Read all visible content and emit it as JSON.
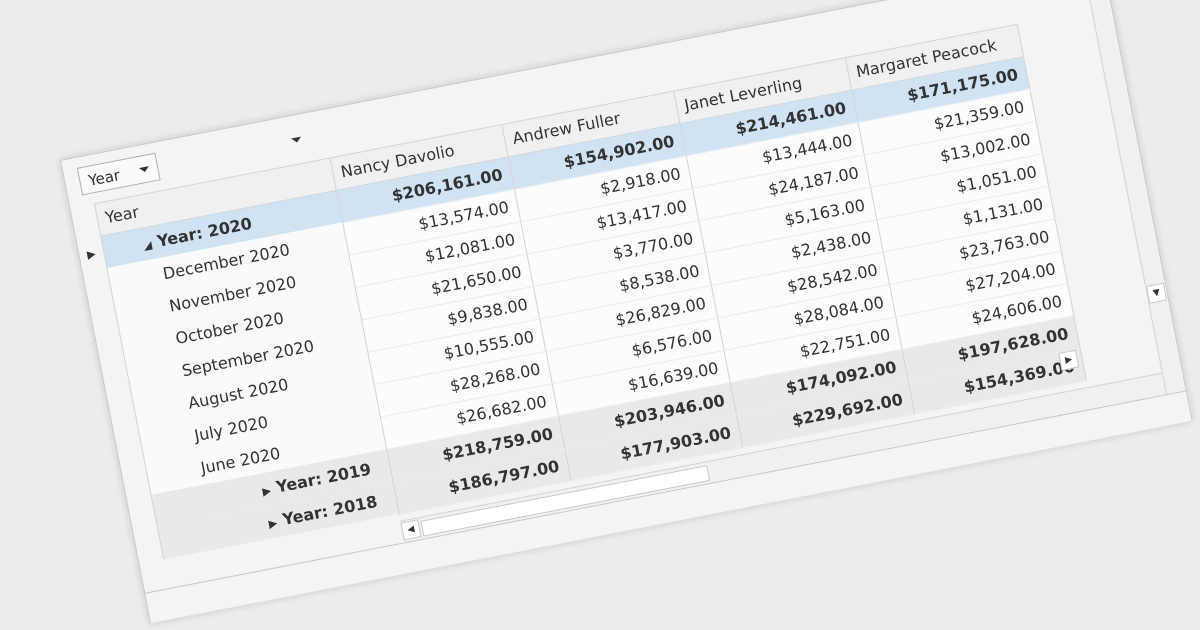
{
  "filter": {
    "label": "Year"
  },
  "grid": {
    "row_header": "Year",
    "columns": [
      "Nancy Davolio",
      "Andrew Fuller",
      "Janet Leverling",
      "Margaret Peacock"
    ],
    "groups": [
      {
        "label": "Year: 2020",
        "total": [
          "$206,161.00",
          "$154,902.00",
          "$214,461.00",
          "$171,175.00"
        ],
        "children": [
          {
            "label": "December 2020",
            "cells": [
              "$13,574.00",
              "$2,918.00",
              "$13,444.00",
              "$21,359.00"
            ]
          },
          {
            "label": "November 2020",
            "cells": [
              "$12,081.00",
              "$13,417.00",
              "$24,187.00",
              "$13,002.00"
            ]
          },
          {
            "label": "October 2020",
            "cells": [
              "$21,650.00",
              "$3,770.00",
              "$5,163.00",
              "$1,051.00"
            ]
          },
          {
            "label": "September 2020",
            "cells": [
              "$9,838.00",
              "$8,538.00",
              "$2,438.00",
              "$1,131.00"
            ]
          },
          {
            "label": "August 2020",
            "cells": [
              "$10,555.00",
              "$26,829.00",
              "$28,542.00",
              "$23,763.00"
            ]
          },
          {
            "label": "July 2020",
            "cells": [
              "$28,268.00",
              "$6,576.00",
              "$28,084.00",
              "$27,204.00"
            ]
          },
          {
            "label": "June 2020",
            "cells": [
              "$26,682.00",
              "$16,639.00",
              "$22,751.00",
              "$24,606.00"
            ]
          }
        ]
      },
      {
        "label": "Year: 2019",
        "total": [
          "$218,759.00",
          "$203,946.00",
          "$174,092.00",
          "$197,628.00"
        ],
        "children": []
      },
      {
        "label": "Year: 2018",
        "total": [
          "$186,797.00",
          "$177,903.00",
          "$229,692.00",
          "$154,369.00"
        ],
        "children": []
      }
    ]
  }
}
